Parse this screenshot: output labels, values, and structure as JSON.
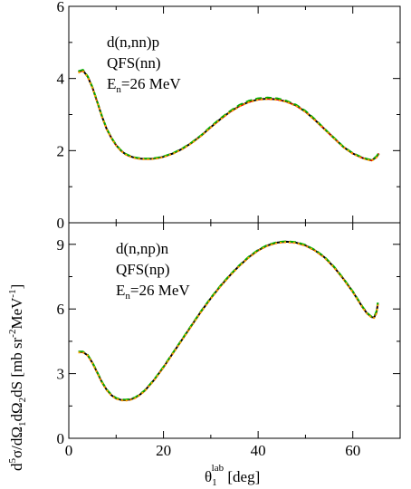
{
  "chart_data": [
    {
      "type": "line",
      "panel": "top",
      "annotation": [
        "d(n,nn)p",
        "QFS(nn)",
        "E",
        "n",
        "=26 MeV"
      ],
      "xlim": [
        0,
        70
      ],
      "ylim": [
        0,
        6
      ],
      "xticks": [
        0,
        20,
        40,
        60
      ],
      "yticks": [
        0,
        2,
        4,
        6
      ],
      "xtick_labels": [
        "0",
        "20",
        "40",
        "60"
      ],
      "ytick_labels": [
        "0",
        "2",
        "4",
        "6"
      ],
      "series": [
        {
          "color": "#000000",
          "dash": "solid",
          "x": [
            2,
            3,
            4,
            5,
            6,
            7,
            8,
            9,
            10,
            11,
            12,
            13,
            14,
            15,
            16,
            17,
            18,
            19,
            20,
            22,
            24,
            26,
            28,
            30,
            32,
            34,
            36,
            38,
            40,
            42,
            44,
            46,
            48,
            50,
            52,
            54,
            56,
            58,
            60,
            62,
            63,
            64,
            65,
            65.5
          ],
          "y": [
            4.18,
            4.22,
            4.05,
            3.75,
            3.35,
            2.95,
            2.6,
            2.35,
            2.15,
            2.0,
            1.9,
            1.84,
            1.8,
            1.78,
            1.77,
            1.77,
            1.78,
            1.8,
            1.83,
            1.92,
            2.05,
            2.22,
            2.42,
            2.65,
            2.87,
            3.07,
            3.23,
            3.35,
            3.42,
            3.44,
            3.42,
            3.36,
            3.25,
            3.08,
            2.85,
            2.6,
            2.35,
            2.1,
            1.92,
            1.8,
            1.76,
            1.73,
            1.82,
            1.92
          ]
        },
        {
          "color": "#ff0000",
          "dash": "dashed",
          "x": [
            2,
            3,
            4,
            5,
            6,
            7,
            8,
            9,
            10,
            11,
            12,
            13,
            14,
            15,
            16,
            17,
            18,
            19,
            20,
            22,
            24,
            26,
            28,
            30,
            32,
            34,
            36,
            38,
            40,
            42,
            44,
            46,
            48,
            50,
            52,
            54,
            56,
            58,
            60,
            62,
            63,
            64,
            65,
            65.5
          ],
          "y": [
            4.18,
            4.22,
            4.05,
            3.75,
            3.35,
            2.95,
            2.6,
            2.35,
            2.15,
            2.0,
            1.9,
            1.84,
            1.8,
            1.78,
            1.77,
            1.77,
            1.78,
            1.8,
            1.83,
            1.92,
            2.05,
            2.22,
            2.42,
            2.65,
            2.87,
            3.07,
            3.23,
            3.35,
            3.42,
            3.44,
            3.42,
            3.36,
            3.25,
            3.08,
            2.85,
            2.6,
            2.35,
            2.1,
            1.92,
            1.8,
            1.76,
            1.73,
            1.82,
            1.92
          ]
        },
        {
          "color": "#00aa00",
          "dash": "dashed",
          "x": [
            2,
            3,
            4,
            5,
            6,
            7,
            8,
            9,
            10,
            11,
            12,
            13,
            14,
            15,
            16,
            17,
            18,
            19,
            20,
            22,
            24,
            26,
            28,
            30,
            32,
            34,
            36,
            38,
            40,
            42,
            44,
            46,
            48,
            50,
            52,
            54,
            56,
            58,
            60,
            62,
            63,
            64,
            65,
            65.5
          ],
          "y": [
            4.2,
            4.24,
            4.06,
            3.76,
            3.36,
            2.96,
            2.61,
            2.36,
            2.16,
            2.01,
            1.91,
            1.85,
            1.81,
            1.79,
            1.78,
            1.78,
            1.79,
            1.81,
            1.84,
            1.93,
            2.06,
            2.23,
            2.43,
            2.67,
            2.89,
            3.09,
            3.26,
            3.38,
            3.45,
            3.47,
            3.45,
            3.38,
            3.27,
            3.1,
            2.87,
            2.61,
            2.36,
            2.11,
            1.93,
            1.81,
            1.77,
            1.74,
            1.84,
            1.94
          ]
        },
        {
          "color": "#ffa500",
          "dash": "dotted",
          "x": [
            2,
            3,
            4,
            5,
            6,
            7,
            8,
            9,
            10,
            11,
            12,
            13,
            14,
            15,
            16,
            17,
            18,
            19,
            20,
            22,
            24,
            26,
            28,
            30,
            32,
            34,
            36,
            38,
            40,
            42,
            44,
            46,
            48,
            50,
            52,
            54,
            56,
            58,
            60,
            62,
            63,
            64,
            65,
            65.5
          ],
          "y": [
            4.16,
            4.2,
            4.04,
            3.74,
            3.34,
            2.94,
            2.59,
            2.34,
            2.14,
            1.99,
            1.89,
            1.83,
            1.79,
            1.77,
            1.76,
            1.76,
            1.77,
            1.79,
            1.82,
            1.91,
            2.04,
            2.21,
            2.41,
            2.64,
            2.86,
            3.06,
            3.22,
            3.34,
            3.41,
            3.43,
            3.41,
            3.35,
            3.24,
            3.07,
            2.84,
            2.59,
            2.34,
            2.09,
            1.91,
            1.79,
            1.75,
            1.72,
            1.81,
            1.9
          ]
        }
      ]
    },
    {
      "type": "line",
      "panel": "bottom",
      "annotation": [
        "d(n,np)n",
        "QFS(np)",
        "E",
        "n",
        "=26 MeV"
      ],
      "xlim": [
        0,
        70
      ],
      "ylim": [
        0,
        10
      ],
      "xticks": [
        0,
        20,
        40,
        60
      ],
      "yticks": [
        0,
        3,
        6,
        9
      ],
      "xtick_labels": [
        "0",
        "20",
        "40",
        "60"
      ],
      "ytick_labels": [
        "0",
        "3",
        "6",
        "9"
      ],
      "series": [
        {
          "color": "#000000",
          "dash": "solid",
          "x": [
            2,
            3,
            4,
            5,
            6,
            7,
            8,
            9,
            10,
            11,
            12,
            13,
            14,
            15,
            16,
            18,
            20,
            22,
            24,
            26,
            28,
            30,
            32,
            34,
            36,
            38,
            40,
            42,
            44,
            46,
            48,
            50,
            52,
            54,
            56,
            58,
            60,
            62,
            63,
            64,
            64.5,
            65,
            65.3
          ],
          "y": [
            4.0,
            4.0,
            3.85,
            3.5,
            3.05,
            2.6,
            2.25,
            2.0,
            1.85,
            1.78,
            1.77,
            1.8,
            1.88,
            2.02,
            2.2,
            2.7,
            3.3,
            3.95,
            4.6,
            5.25,
            5.9,
            6.5,
            7.05,
            7.55,
            8.0,
            8.4,
            8.72,
            8.95,
            9.08,
            9.12,
            9.08,
            8.95,
            8.72,
            8.4,
            7.95,
            7.4,
            6.8,
            6.1,
            5.8,
            5.62,
            5.6,
            5.85,
            6.25
          ]
        },
        {
          "color": "#ff0000",
          "dash": "dashed",
          "x": [
            2,
            3,
            4,
            5,
            6,
            7,
            8,
            9,
            10,
            11,
            12,
            13,
            14,
            15,
            16,
            18,
            20,
            22,
            24,
            26,
            28,
            30,
            32,
            34,
            36,
            38,
            40,
            42,
            44,
            46,
            48,
            50,
            52,
            54,
            56,
            58,
            60,
            62,
            63,
            64,
            64.5,
            65,
            65.3
          ],
          "y": [
            4.0,
            4.0,
            3.85,
            3.5,
            3.05,
            2.6,
            2.25,
            2.0,
            1.85,
            1.78,
            1.77,
            1.8,
            1.88,
            2.02,
            2.2,
            2.7,
            3.3,
            3.95,
            4.6,
            5.25,
            5.9,
            6.5,
            7.05,
            7.55,
            8.0,
            8.4,
            8.72,
            8.95,
            9.08,
            9.12,
            9.08,
            8.95,
            8.72,
            8.4,
            7.95,
            7.4,
            6.8,
            6.1,
            5.8,
            5.62,
            5.6,
            5.85,
            6.25
          ]
        },
        {
          "color": "#00aa00",
          "dash": "dashed",
          "x": [
            2,
            3,
            4,
            5,
            6,
            7,
            8,
            9,
            10,
            11,
            12,
            13,
            14,
            15,
            16,
            18,
            20,
            22,
            24,
            26,
            28,
            30,
            32,
            34,
            36,
            38,
            40,
            42,
            44,
            46,
            48,
            50,
            52,
            54,
            56,
            58,
            60,
            62,
            63,
            64,
            64.5,
            65,
            65.3
          ],
          "y": [
            4.02,
            4.02,
            3.87,
            3.52,
            3.07,
            2.62,
            2.27,
            2.02,
            1.87,
            1.8,
            1.79,
            1.82,
            1.9,
            2.04,
            2.22,
            2.72,
            3.32,
            3.97,
            4.62,
            5.27,
            5.92,
            6.52,
            7.07,
            7.57,
            8.02,
            8.42,
            8.74,
            8.97,
            9.1,
            9.14,
            9.1,
            8.97,
            8.74,
            8.42,
            7.97,
            7.42,
            6.82,
            6.12,
            5.82,
            5.64,
            5.62,
            5.9,
            6.3
          ]
        },
        {
          "color": "#ffa500",
          "dash": "dotted",
          "x": [
            2,
            3,
            4,
            5,
            6,
            7,
            8,
            9,
            10,
            11,
            12,
            13,
            14,
            15,
            16,
            18,
            20,
            22,
            24,
            26,
            28,
            30,
            32,
            34,
            36,
            38,
            40,
            42,
            44,
            46,
            48,
            50,
            52,
            54,
            56,
            58,
            60,
            62,
            63,
            64,
            64.5,
            65,
            65.3
          ],
          "y": [
            3.98,
            3.98,
            3.83,
            3.48,
            3.03,
            2.58,
            2.23,
            1.98,
            1.83,
            1.76,
            1.75,
            1.78,
            1.86,
            2.0,
            2.18,
            2.68,
            3.28,
            3.93,
            4.58,
            5.23,
            5.88,
            6.48,
            7.03,
            7.53,
            7.98,
            8.38,
            8.7,
            8.93,
            9.06,
            9.1,
            9.06,
            8.93,
            8.7,
            8.38,
            7.93,
            7.38,
            6.78,
            6.08,
            5.78,
            5.6,
            5.58,
            5.8,
            6.2
          ]
        }
      ]
    }
  ],
  "ylabel": [
    "d",
    "5",
    "σ/dΩ",
    "1",
    "dΩ",
    "2",
    "dS [mb sr",
    "-2",
    "MeV",
    "-1",
    "]"
  ],
  "xlabel": [
    "θ",
    "1",
    "lab",
    " [deg]"
  ]
}
